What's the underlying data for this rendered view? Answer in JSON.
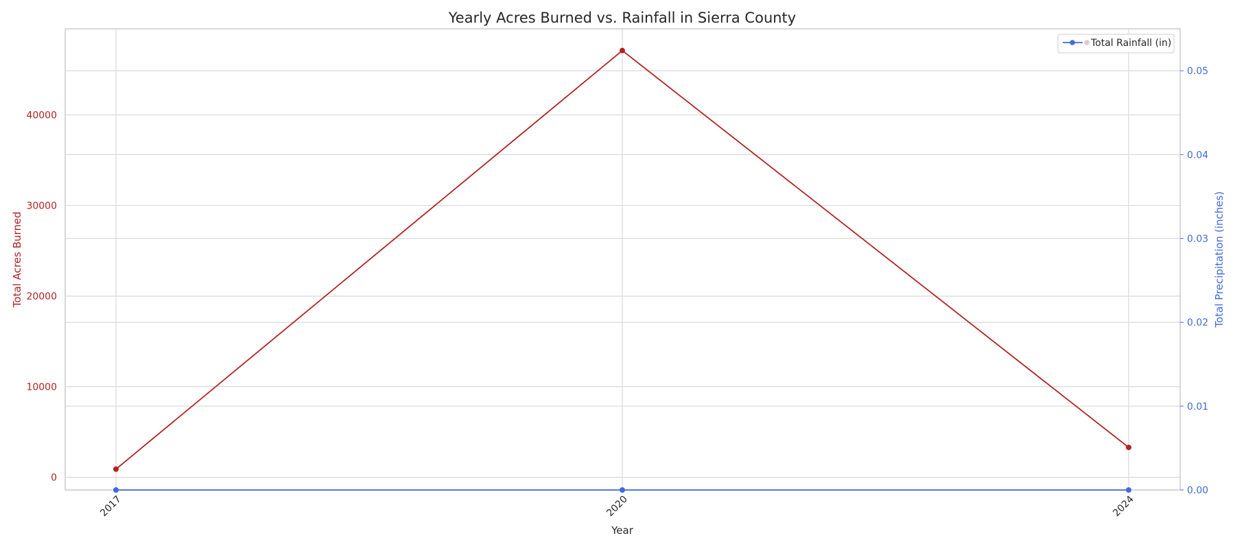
{
  "chart_data": {
    "type": "line",
    "title": "Yearly Acres Burned vs. Rainfall in Sierra County",
    "xlabel": "Year",
    "categories": [
      "2017",
      "2020",
      "2024"
    ],
    "y_left": {
      "label": "Total Acres Burned",
      "color": "#b22222",
      "ticks": [
        0,
        10000,
        20000,
        30000,
        40000
      ],
      "ylim": [
        -1400,
        49500
      ]
    },
    "y_right": {
      "label": "Total Precipitation (inches)",
      "color": "#4169e1",
      "ticks": [
        0.0,
        0.01,
        0.02,
        0.03,
        0.04,
        0.05
      ],
      "tick_labels": [
        "0.00",
        "0.01",
        "0.02",
        "0.03",
        "0.04",
        "0.05"
      ],
      "ylim": [
        0,
        0.055
      ]
    },
    "series": [
      {
        "axis": "left",
        "color": "#b22222",
        "values": [
          900,
          47100,
          3300
        ]
      },
      {
        "name": "Total Rainfall (in)",
        "axis": "right",
        "color": "#4169e1",
        "values": [
          0,
          0,
          0
        ]
      }
    ],
    "grid": true,
    "legend_position": "top-right"
  }
}
